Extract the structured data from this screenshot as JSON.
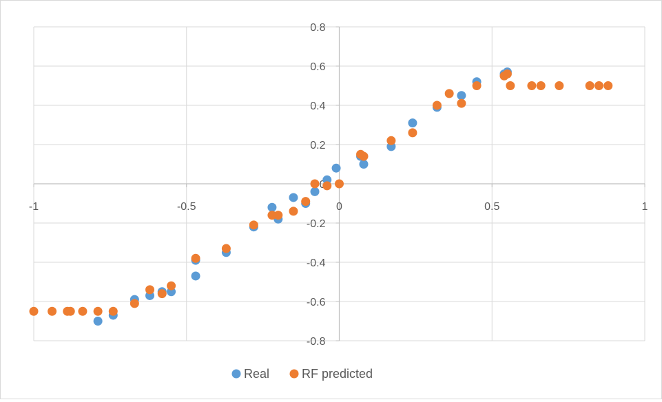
{
  "chart_data": {
    "type": "scatter",
    "xlim": [
      -1,
      1
    ],
    "ylim": [
      -0.8,
      0.8
    ],
    "x_ticks": [
      -1,
      -0.5,
      0,
      0.5,
      1
    ],
    "x_tick_labels": [
      "-1",
      "-0.5",
      "0",
      "0.5",
      "1"
    ],
    "y_ticks": [
      -0.8,
      -0.6,
      -0.4,
      -0.2,
      0,
      0.2,
      0.4,
      0.6,
      0.8
    ],
    "y_tick_labels": [
      "-0.8",
      "-0.6",
      "-0.4",
      "-0.2",
      "0",
      "0.2",
      "0.4",
      "0.6",
      "0.8"
    ],
    "grid": true,
    "legend_position": "bottom",
    "series": [
      {
        "name": "Real",
        "color": "#5b9bd5",
        "points": [
          [
            -0.79,
            -0.7
          ],
          [
            -0.74,
            -0.67
          ],
          [
            -0.67,
            -0.59
          ],
          [
            -0.62,
            -0.57
          ],
          [
            -0.58,
            -0.55
          ],
          [
            -0.55,
            -0.55
          ],
          [
            -0.47,
            -0.47
          ],
          [
            -0.47,
            -0.39
          ],
          [
            -0.37,
            -0.35
          ],
          [
            -0.28,
            -0.22
          ],
          [
            -0.22,
            -0.12
          ],
          [
            -0.2,
            -0.18
          ],
          [
            -0.15,
            -0.07
          ],
          [
            -0.11,
            -0.1
          ],
          [
            -0.08,
            -0.04
          ],
          [
            -0.04,
            0.02
          ],
          [
            -0.01,
            0.08
          ],
          [
            0.07,
            0.14
          ],
          [
            0.08,
            0.1
          ],
          [
            0.17,
            0.19
          ],
          [
            0.24,
            0.31
          ],
          [
            0.32,
            0.39
          ],
          [
            0.4,
            0.45
          ],
          [
            0.45,
            0.52
          ],
          [
            0.54,
            0.56
          ],
          [
            0.55,
            0.57
          ]
        ]
      },
      {
        "name": "RF predicted",
        "color": "#ed7d31",
        "points": [
          [
            -1.0,
            -0.65
          ],
          [
            -0.94,
            -0.65
          ],
          [
            -0.89,
            -0.65
          ],
          [
            -0.88,
            -0.65
          ],
          [
            -0.84,
            -0.65
          ],
          [
            -0.79,
            -0.65
          ],
          [
            -0.74,
            -0.65
          ],
          [
            -0.67,
            -0.61
          ],
          [
            -0.62,
            -0.54
          ],
          [
            -0.58,
            -0.56
          ],
          [
            -0.55,
            -0.52
          ],
          [
            -0.47,
            -0.38
          ],
          [
            -0.37,
            -0.33
          ],
          [
            -0.28,
            -0.21
          ],
          [
            -0.22,
            -0.16
          ],
          [
            -0.2,
            -0.16
          ],
          [
            -0.15,
            -0.14
          ],
          [
            -0.11,
            -0.09
          ],
          [
            -0.08,
            0.0
          ],
          [
            -0.04,
            -0.01
          ],
          [
            0.0,
            0.0
          ],
          [
            0.07,
            0.15
          ],
          [
            0.08,
            0.14
          ],
          [
            0.17,
            0.22
          ],
          [
            0.24,
            0.26
          ],
          [
            0.32,
            0.4
          ],
          [
            0.36,
            0.46
          ],
          [
            0.4,
            0.41
          ],
          [
            0.45,
            0.5
          ],
          [
            0.54,
            0.55
          ],
          [
            0.55,
            0.56
          ],
          [
            0.56,
            0.5
          ],
          [
            0.63,
            0.5
          ],
          [
            0.66,
            0.5
          ],
          [
            0.72,
            0.5
          ],
          [
            0.82,
            0.5
          ],
          [
            0.85,
            0.5
          ],
          [
            0.88,
            0.5
          ]
        ]
      }
    ]
  }
}
